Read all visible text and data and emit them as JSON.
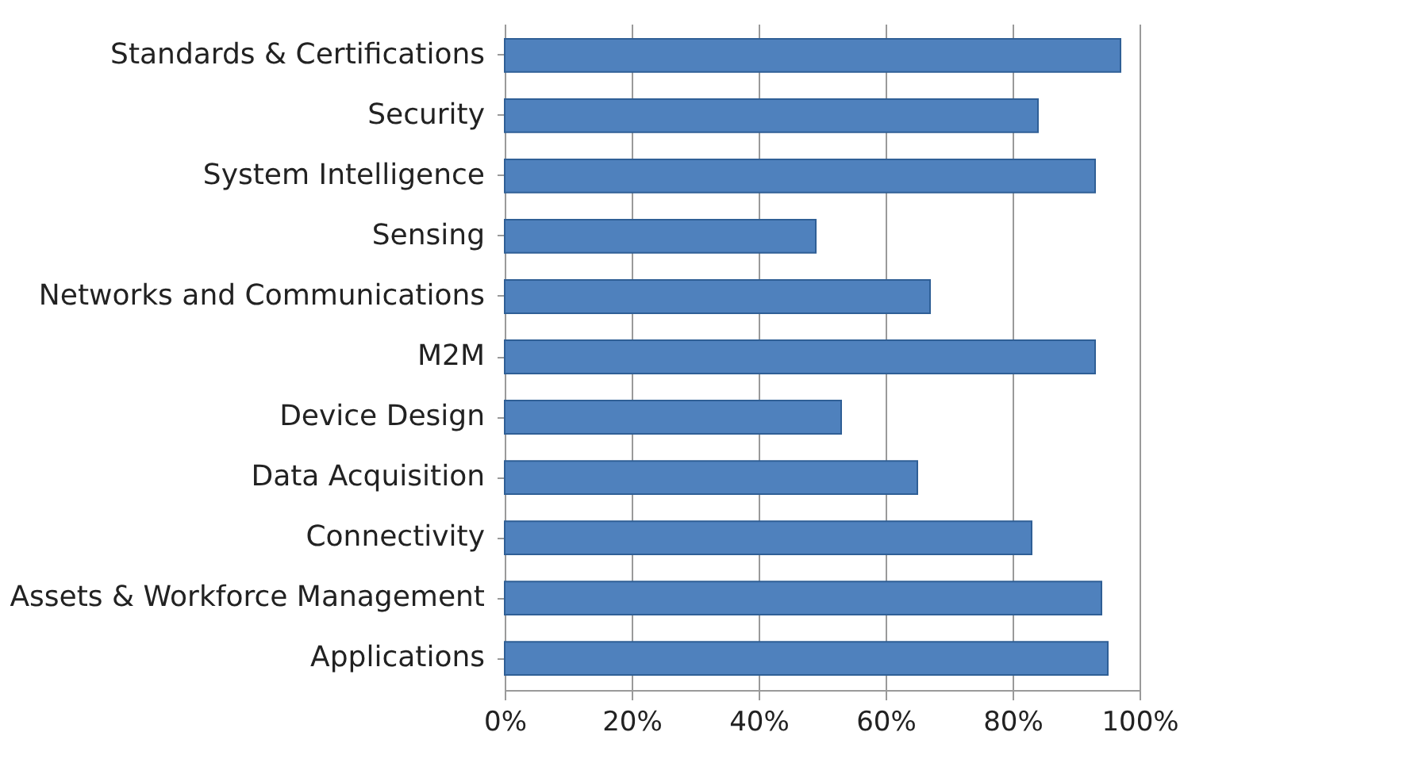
{
  "chart_data": {
    "type": "bar",
    "orientation": "horizontal",
    "categories": [
      "Standards & Certifications",
      "Security",
      "System Intelligence",
      "Sensing",
      "Networks and Communications",
      "M2M",
      "Device Design",
      "Data Acquisition",
      "Connectivity",
      "Assets & Workforce Management",
      "Applications"
    ],
    "values": [
      97,
      84,
      93,
      49,
      67,
      93,
      53,
      65,
      83,
      94,
      95
    ],
    "color": "#4f81bd",
    "xlim": [
      0,
      100
    ],
    "xticks": [
      {
        "value": 0,
        "label": "0%"
      },
      {
        "value": 20,
        "label": "20%"
      },
      {
        "value": 40,
        "label": "40%"
      },
      {
        "value": 60,
        "label": "60%"
      },
      {
        "value": 80,
        "label": "80%"
      },
      {
        "value": 100,
        "label": "100%"
      }
    ],
    "grid": "x"
  }
}
